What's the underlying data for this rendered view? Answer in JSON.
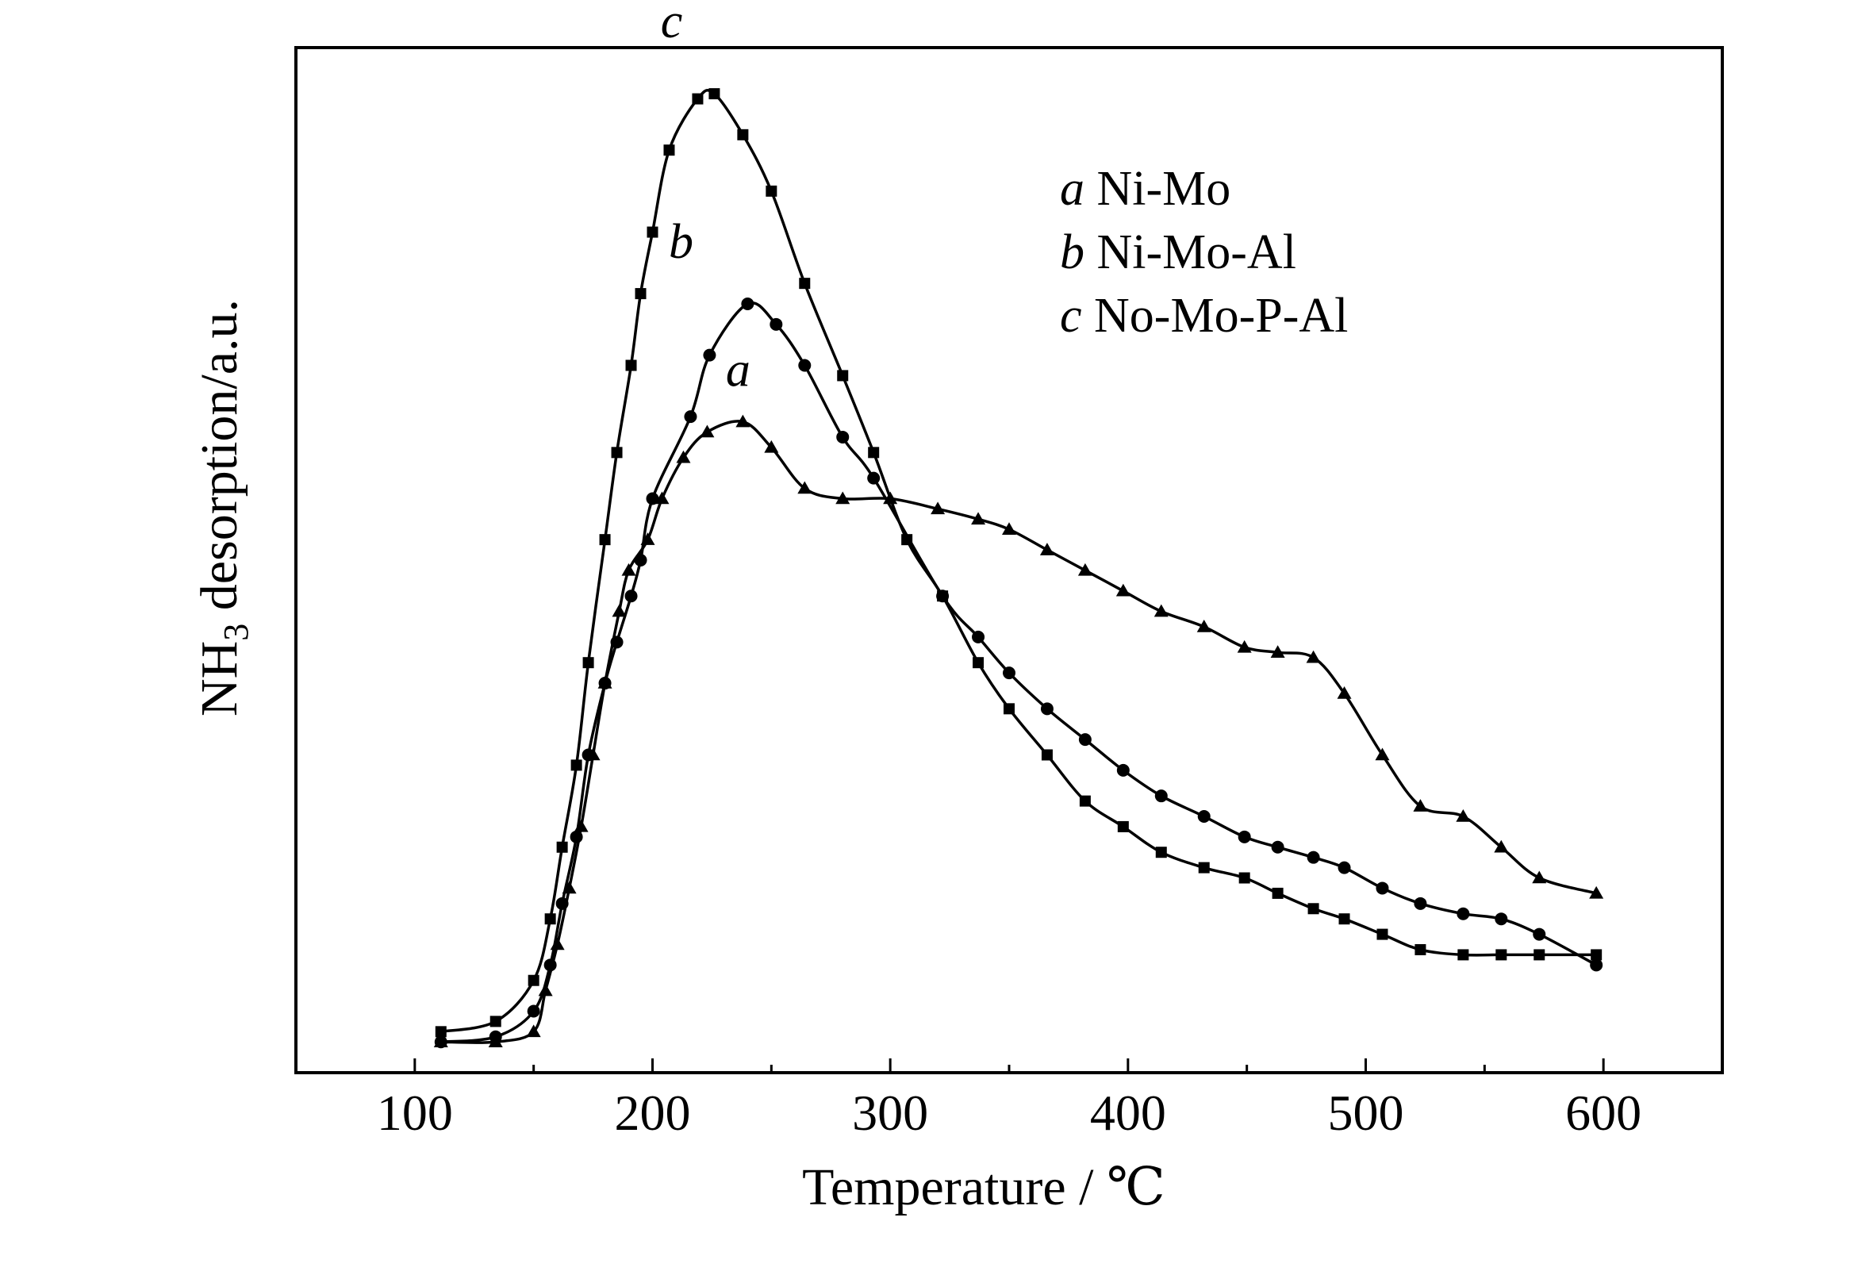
{
  "chart_data": {
    "type": "line",
    "xlabel": "Temperature / ℃",
    "ylabel_main": "NH",
    "ylabel_sub": "3",
    "ylabel_rest": " desorption/a.u.",
    "xlim": [
      50,
      650
    ],
    "ylim": [
      0,
      100
    ],
    "xticks": [
      100,
      200,
      300,
      400,
      500,
      600
    ],
    "yticks_shown": false,
    "grid": false,
    "legend_placement": "top-right",
    "series": [
      {
        "letter": "a",
        "name": "Ni-Mo",
        "marker": "triangle",
        "x": [
          111,
          134,
          150,
          155,
          160,
          165,
          170,
          175,
          180,
          186,
          190,
          198,
          204,
          213,
          223,
          238,
          250,
          264,
          280,
          300,
          320,
          337,
          350,
          366,
          382,
          398,
          414,
          432,
          449,
          463,
          478,
          491,
          507,
          523,
          541,
          557,
          573,
          597
        ],
        "y": [
          3.0,
          3.0,
          4.0,
          8.0,
          12.5,
          18.0,
          24.0,
          31.0,
          38.0,
          45.0,
          49.0,
          52.0,
          56.0,
          60.0,
          62.5,
          63.5,
          61.0,
          57.0,
          56.0,
          56.0,
          55.0,
          54.0,
          53.0,
          51.0,
          49.0,
          47.0,
          45.0,
          43.5,
          41.5,
          41.0,
          40.5,
          37.0,
          31.0,
          26.0,
          25.0,
          22.0,
          19.0,
          17.5
        ]
      },
      {
        "letter": "b",
        "name": "Ni-Mo-Al",
        "marker": "circle",
        "x": [
          111,
          134,
          150,
          157,
          162,
          168,
          173,
          180,
          185,
          191,
          195,
          200,
          216,
          224,
          240,
          252,
          264,
          280,
          293,
          322,
          337,
          350,
          366,
          382,
          398,
          414,
          432,
          449,
          463,
          478,
          491,
          507,
          523,
          541,
          557,
          573,
          597
        ],
        "y": [
          3.0,
          3.5,
          6.0,
          10.5,
          16.5,
          23.0,
          31.0,
          38.0,
          42.0,
          46.5,
          50.0,
          56.0,
          64.0,
          70.0,
          75.0,
          73.0,
          69.0,
          62.0,
          58.0,
          46.5,
          42.5,
          39.0,
          35.5,
          32.5,
          29.5,
          27.0,
          25.0,
          23.0,
          22.0,
          21.0,
          20.0,
          18.0,
          16.5,
          15.5,
          15.0,
          13.5,
          10.5
        ]
      },
      {
        "letter": "c",
        "name": "No-Mo-P-Al",
        "marker": "square",
        "x": [
          111,
          134,
          150,
          157,
          162,
          168,
          173,
          180,
          185,
          191,
          195,
          200,
          207,
          219,
          226,
          238,
          250,
          264,
          280,
          293,
          307,
          322,
          337,
          350,
          366,
          382,
          398,
          414,
          432,
          449,
          463,
          478,
          491,
          507,
          523,
          541,
          557,
          573,
          597
        ],
        "y": [
          4.0,
          5.0,
          9.0,
          15.0,
          22.0,
          30.0,
          40.0,
          52.0,
          60.5,
          69.0,
          76.0,
          82.0,
          90.0,
          95.0,
          95.5,
          91.5,
          86.0,
          77.0,
          68.0,
          60.5,
          52.0,
          46.5,
          40.0,
          35.5,
          31.0,
          26.5,
          24.0,
          21.5,
          20.0,
          19.0,
          17.5,
          16.0,
          15.0,
          13.5,
          12.0,
          11.5,
          11.5,
          11.5,
          11.5
        ]
      }
    ]
  }
}
